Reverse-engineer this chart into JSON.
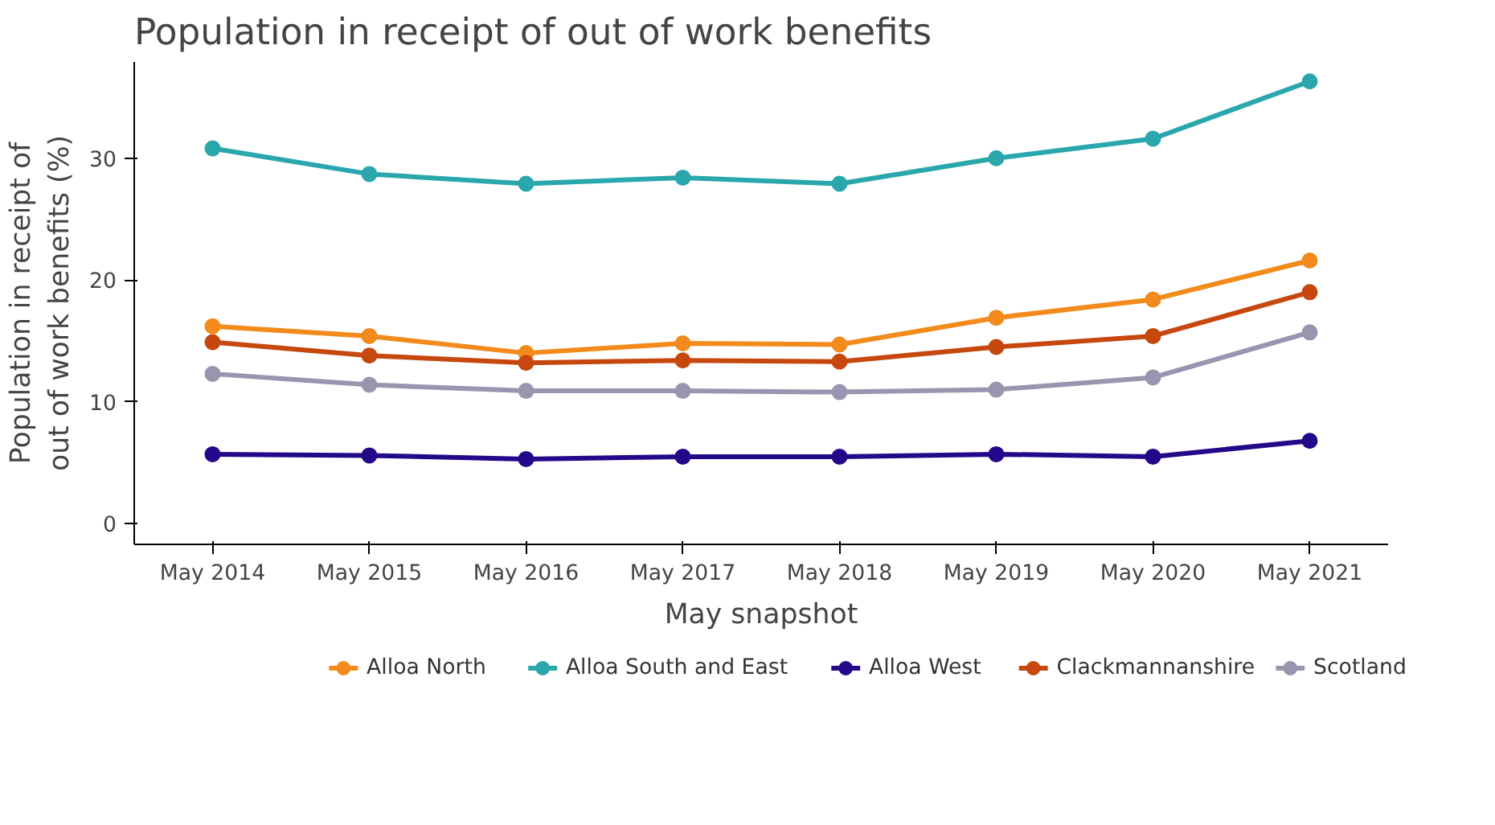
{
  "chart_data": {
    "type": "line",
    "title": "Population in receipt of out of work benefits",
    "xlabel": "May snapshot",
    "ylabel": "Population in receipt of\nout of work benefits (%)",
    "categories": [
      "May 2014",
      "May 2015",
      "May 2016",
      "May 2017",
      "May 2018",
      "May 2019",
      "May 2020",
      "May 2021"
    ],
    "series": [
      {
        "name": "Alloa North",
        "color": "#f28a1c",
        "values": [
          16.2,
          15.4,
          14.0,
          14.8,
          14.7,
          16.9,
          18.4,
          21.6
        ]
      },
      {
        "name": "Alloa South and East",
        "color": "#2aa7ad",
        "values": [
          30.8,
          28.7,
          27.9,
          28.4,
          27.9,
          30.0,
          31.6,
          36.3
        ]
      },
      {
        "name": "Alloa West",
        "color": "#23098a",
        "values": [
          5.7,
          5.6,
          5.3,
          5.5,
          5.5,
          5.7,
          5.5,
          6.8
        ]
      },
      {
        "name": "Clackmannanshire",
        "color": "#c6480f",
        "values": [
          14.9,
          13.8,
          13.2,
          13.4,
          13.3,
          14.5,
          15.4,
          19.0
        ]
      },
      {
        "name": "Scotland",
        "color": "#9a95ae",
        "values": [
          12.3,
          11.4,
          10.9,
          10.9,
          10.8,
          11.0,
          12.0,
          15.7
        ]
      }
    ],
    "ylim": [
      -1.7,
      37.9
    ],
    "yticks": [
      0,
      10,
      20,
      30
    ],
    "grid": false,
    "legend": "bottom",
    "marker": "circle",
    "line_style": "solid"
  }
}
